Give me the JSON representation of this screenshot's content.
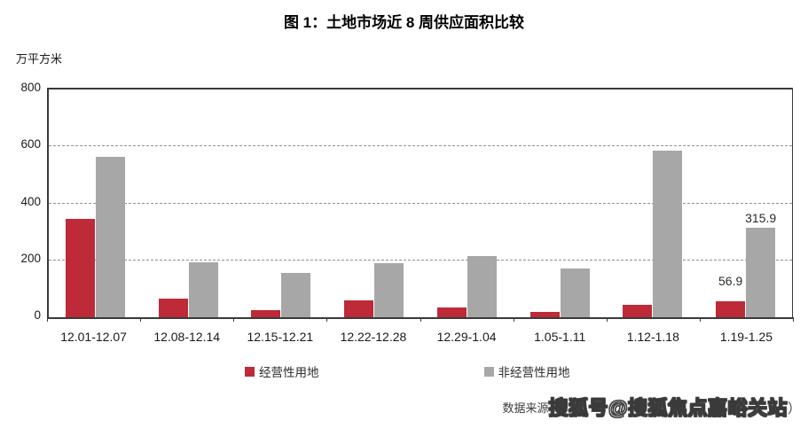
{
  "chart_data": {
    "type": "bar",
    "title": "图 1：土地市场近 8 周供应面积比较",
    "ylabel_unit": "万平方米",
    "ylim": [
      0,
      800
    ],
    "yticks": [
      0,
      200,
      400,
      600,
      800
    ],
    "grid": "horizontal-dashed",
    "legend_position": "bottom",
    "categories": [
      "12.01-12.07",
      "12.08-12.14",
      "12.15-12.21",
      "12.22-12.28",
      "12.29-1.04",
      "1.05-1.11",
      "1.12-1.18",
      "1.19-1.25"
    ],
    "series": [
      {
        "name": "经营性用地",
        "color": "#be2a38",
        "values": [
          345,
          66,
          24,
          59,
          34,
          20,
          44,
          56.9
        ],
        "labels": [
          "",
          "",
          "",
          "",
          "",
          "",
          "",
          "56.9"
        ]
      },
      {
        "name": "非经营性用地",
        "color": "#a7a7a7",
        "values": [
          565,
          192,
          156,
          189,
          214,
          170,
          585,
          315.9
        ],
        "labels": [
          "",
          "",
          "",
          "",
          "",
          "",
          "",
          "315.9"
        ]
      }
    ]
  },
  "footer": {
    "source_prefix": "数据来源",
    "watermark": "搜狐号@搜狐焦点嘉峪关站",
    "suffix": "）"
  },
  "colors": {
    "axis": "#3a3a3a",
    "grid": "#909090"
  }
}
